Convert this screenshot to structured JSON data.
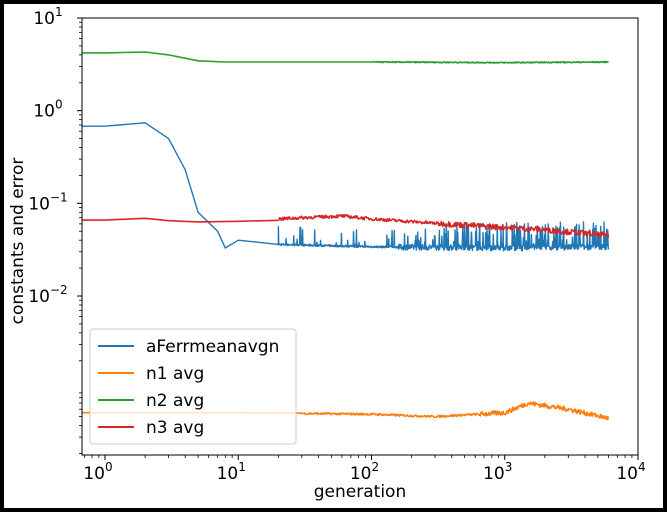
{
  "chart_data": {
    "type": "line",
    "title": "",
    "xlabel": "generation",
    "ylabel": "constants and error",
    "xscale": "log",
    "yscale": "log",
    "xlim": [
      0.65,
      10000
    ],
    "ylim_label_range": [
      0.01,
      10
    ],
    "x_ticks": [
      {
        "value": 1,
        "base": "10",
        "exp": "0"
      },
      {
        "value": 10,
        "base": "10",
        "exp": "1"
      },
      {
        "value": 100,
        "base": "10",
        "exp": "2"
      },
      {
        "value": 1000,
        "base": "10",
        "exp": "3"
      },
      {
        "value": 10000,
        "base": "10",
        "exp": "4"
      }
    ],
    "y_ticks": [
      {
        "label_base": "10",
        "label_exp": "1"
      },
      {
        "label_base": "10",
        "label_exp": "0"
      },
      {
        "label_base": "10",
        "label_exp": "−1"
      },
      {
        "label_base": "10",
        "label_exp": "−2"
      }
    ],
    "grid": false,
    "legend_position": "lower-left",
    "series": [
      {
        "name": "aFerrmeanavgn",
        "color": "#1f77b4",
        "points": [
          [
            0.65,
            0.68
          ],
          [
            1,
            0.68
          ],
          [
            2,
            0.74
          ],
          [
            3,
            0.5
          ],
          [
            4,
            0.23
          ],
          [
            5,
            0.08
          ],
          [
            6,
            0.062
          ],
          [
            7,
            0.05
          ],
          [
            8,
            0.033
          ],
          [
            10,
            0.04
          ],
          [
            20,
            0.036
          ],
          [
            100,
            0.034
          ],
          [
            1000,
            0.033
          ],
          [
            6000,
            0.034
          ]
        ],
        "noise_band": [
          [
            20,
            0.032,
            0.05
          ],
          [
            100,
            0.032,
            0.055
          ],
          [
            1000,
            0.031,
            0.07
          ],
          [
            6000,
            0.031,
            0.065
          ]
        ]
      },
      {
        "name": "n1 avg",
        "color": "#ff7f0e",
        "points": [
          [
            0.65,
            0.00055
          ],
          [
            10,
            0.00055
          ],
          [
            100,
            0.00053
          ],
          [
            300,
            0.0005
          ],
          [
            1000,
            0.00055
          ],
          [
            1500,
            0.0007
          ],
          [
            3000,
            0.0006
          ],
          [
            6000,
            0.00048
          ]
        ]
      },
      {
        "name": "n2 avg",
        "color": "#2ca02c",
        "points": [
          [
            0.65,
            4.2
          ],
          [
            1,
            4.2
          ],
          [
            2,
            4.3
          ],
          [
            3,
            4.0
          ],
          [
            5,
            3.45
          ],
          [
            8,
            3.35
          ],
          [
            10,
            3.35
          ],
          [
            100,
            3.35
          ],
          [
            1000,
            3.3
          ],
          [
            6000,
            3.35
          ]
        ]
      },
      {
        "name": "n3 avg",
        "color": "#d62728",
        "points": [
          [
            0.65,
            0.066
          ],
          [
            1,
            0.066
          ],
          [
            2,
            0.069
          ],
          [
            3,
            0.065
          ],
          [
            5,
            0.063
          ],
          [
            10,
            0.064
          ],
          [
            30,
            0.07
          ],
          [
            60,
            0.073
          ],
          [
            100,
            0.068
          ],
          [
            300,
            0.061
          ],
          [
            1000,
            0.055
          ],
          [
            2000,
            0.052
          ],
          [
            6000,
            0.045
          ]
        ]
      }
    ]
  }
}
